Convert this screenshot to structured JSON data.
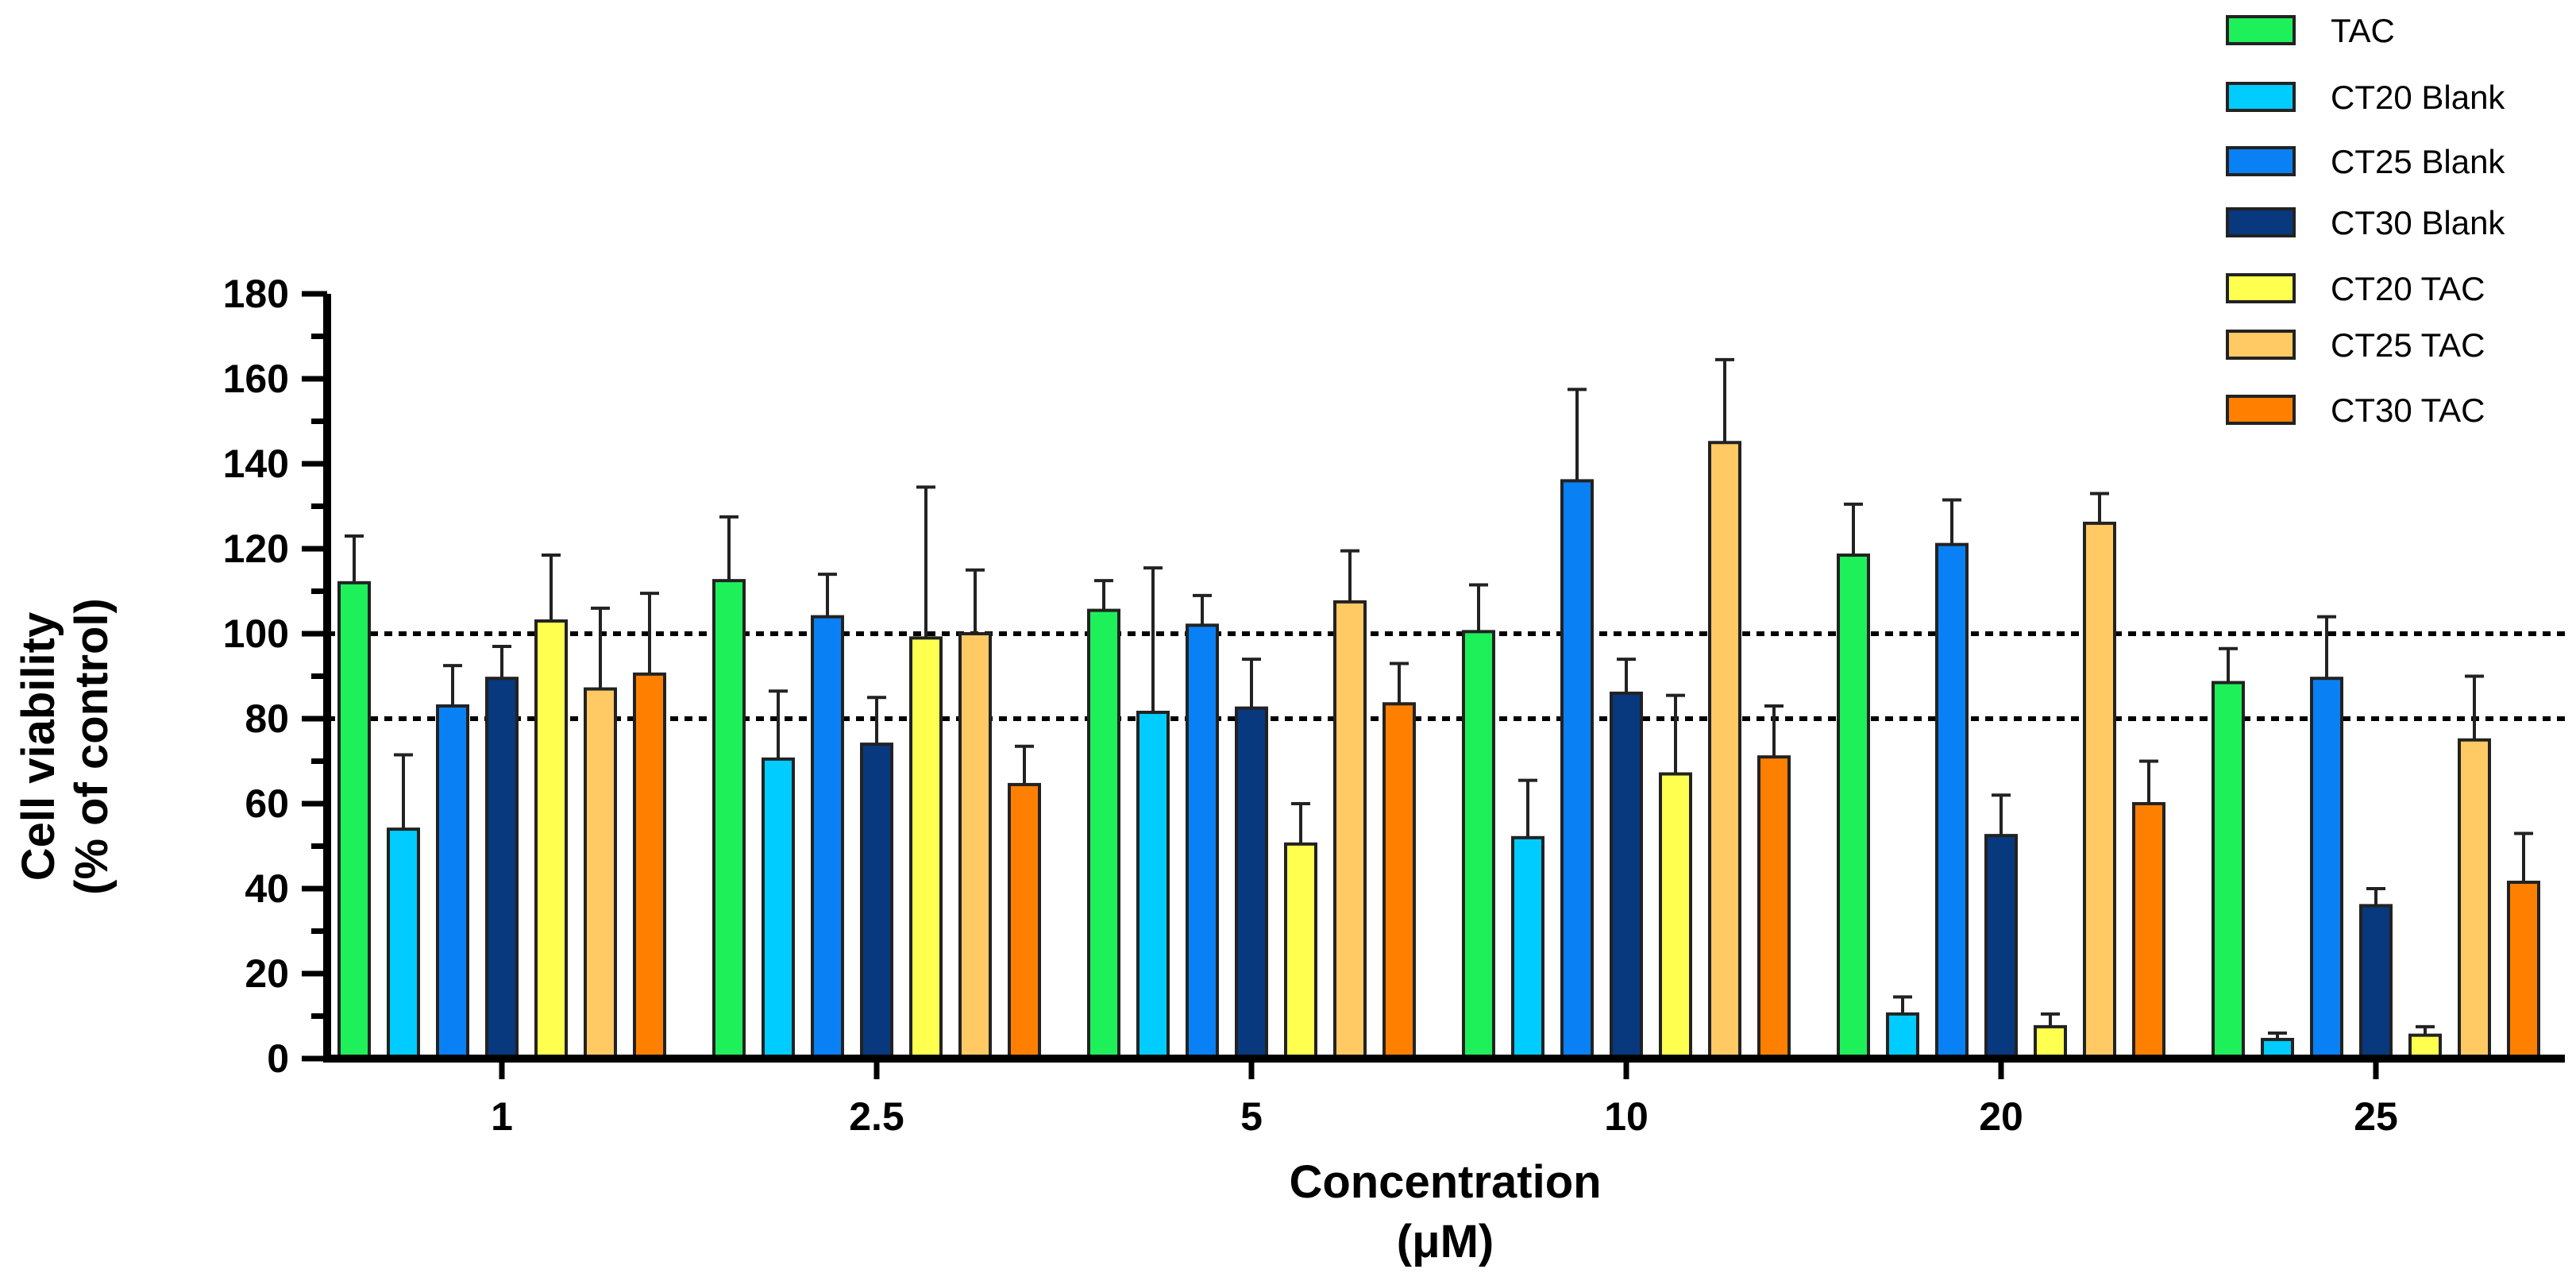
{
  "chart_data": {
    "type": "bar",
    "title": "",
    "ylabel_lines": [
      "Cell viability",
      "(% of control)"
    ],
    "xlabel_lines": [
      "Concentration",
      "(μM)"
    ],
    "ylim": [
      0,
      180
    ],
    "yticks": [
      0,
      20,
      40,
      60,
      80,
      100,
      120,
      140,
      160,
      180
    ],
    "reference_lines": [
      100,
      80
    ],
    "legend_position": "top-right",
    "categories": [
      "1",
      "2.5",
      "5",
      "10",
      "20",
      "25"
    ],
    "series": [
      {
        "name": "TAC",
        "color": "#1EF05A",
        "values": [
          112,
          112.5,
          105.5,
          100.5,
          118.5,
          88.5
        ],
        "errors": [
          11,
          15,
          7,
          11,
          12,
          8
        ]
      },
      {
        "name": "CT20 Blank",
        "color": "#00CCFF",
        "values": [
          54,
          70.5,
          81.5,
          52,
          10.5,
          4.5
        ],
        "errors": [
          17.5,
          16,
          34,
          13.5,
          4,
          1.5
        ]
      },
      {
        "name": "CT25 Blank",
        "color": "#0A80F5",
        "values": [
          83,
          104,
          102,
          136,
          121,
          89.5
        ],
        "errors": [
          9.5,
          10,
          7,
          21.5,
          10.5,
          14.5
        ]
      },
      {
        "name": "CT30 Blank",
        "color": "#08387E",
        "values": [
          89.5,
          74,
          82.5,
          86,
          52.5,
          36
        ],
        "errors": [
          7.5,
          11,
          11.5,
          8,
          9.5,
          4
        ]
      },
      {
        "name": "CT20 TAC",
        "color": "#FFFF50",
        "values": [
          103,
          99,
          50.5,
          67,
          7.5,
          5.5
        ],
        "errors": [
          15.5,
          35.5,
          9.5,
          18.5,
          3,
          2
        ]
      },
      {
        "name": "CT25 TAC",
        "color": "#FFC964",
        "values": [
          87,
          100,
          107.5,
          145,
          126,
          75
        ],
        "errors": [
          19,
          15,
          12,
          19.5,
          7,
          15
        ]
      },
      {
        "name": "CT30 TAC",
        "color": "#FF8000",
        "values": [
          90.5,
          64.5,
          83.5,
          71,
          60,
          41.5
        ],
        "errors": [
          19,
          9,
          9.5,
          12,
          10,
          11.5
        ]
      }
    ]
  }
}
